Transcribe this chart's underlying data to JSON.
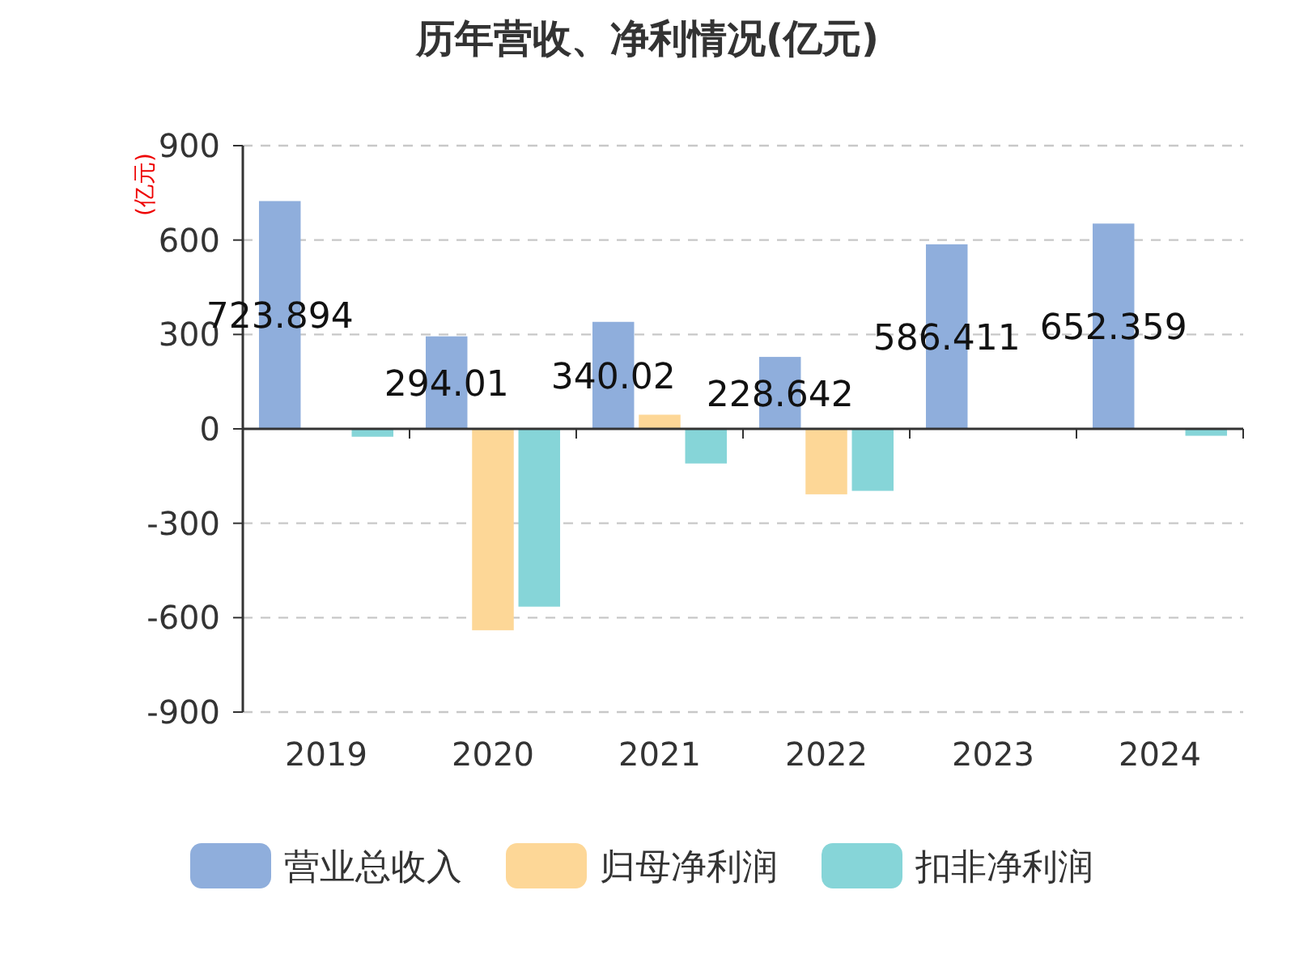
{
  "chart_data": {
    "type": "bar",
    "title": "历年营收、净利情况(亿元)",
    "ylabel": "(亿元)",
    "categories": [
      "2019",
      "2020",
      "2021",
      "2022",
      "2023",
      "2024"
    ],
    "series": [
      {
        "name": "营业总收入",
        "color": "#8faedc",
        "values": [
          723.894,
          294.01,
          340.02,
          228.642,
          586.411,
          652.359
        ],
        "value_labels": [
          "723.894",
          "294.01",
          "340.02",
          "228.642",
          "586.411",
          "652.359"
        ]
      },
      {
        "name": "归母净利润",
        "color": "#fdd797",
        "values": [
          null,
          -640,
          45,
          -208,
          null,
          null
        ]
      },
      {
        "name": "扣非净利润",
        "color": "#86d5d8",
        "values": [
          -25,
          -565,
          -110,
          -197,
          null,
          -22
        ]
      }
    ],
    "ylim": [
      -900,
      900
    ],
    "yticks": [
      -900,
      -600,
      -300,
      0,
      300,
      600,
      900
    ],
    "grid": "y",
    "legend": "bottom"
  }
}
